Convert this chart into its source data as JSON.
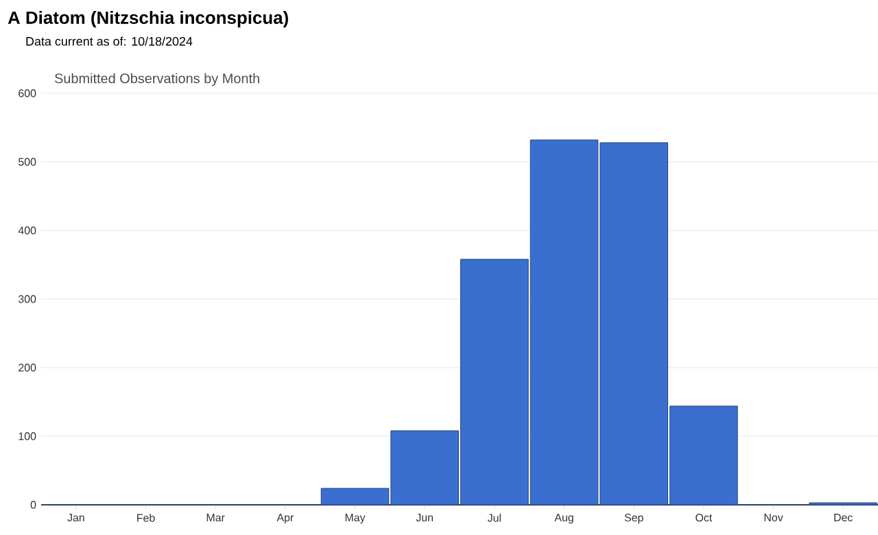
{
  "chart_data": {
    "type": "bar",
    "title": "A Diatom   (Nitzschia inconspicua)",
    "subtitle": "Data current as of: 10/18/2024",
    "annotations": [
      "Submitted Observations by Month"
    ],
    "categories": [
      "Jan",
      "Feb",
      "Mar",
      "Apr",
      "May",
      "Jun",
      "Jul",
      "Aug",
      "Sep",
      "Oct",
      "Nov",
      "Dec"
    ],
    "values": [
      0,
      0,
      0,
      0,
      24,
      108,
      358,
      532,
      528,
      144,
      0,
      3
    ],
    "color": "#3a6fd0",
    "ylim": [
      0,
      600
    ],
    "yticks": [
      0,
      100,
      200,
      300,
      400,
      500,
      600
    ],
    "grid": "y"
  }
}
